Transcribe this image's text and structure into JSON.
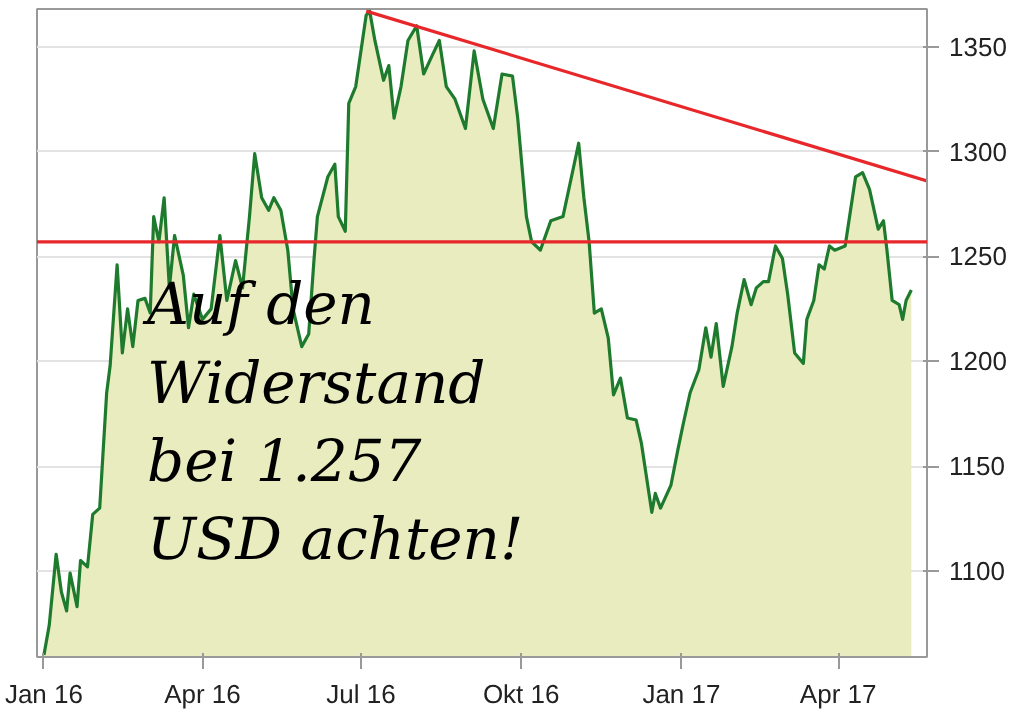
{
  "chart_data": {
    "type": "area",
    "x": [
      "2016-01-01",
      "2016-01-04",
      "2016-01-08",
      "2016-01-11",
      "2016-01-14",
      "2016-01-16",
      "2016-01-20",
      "2016-01-22",
      "2016-01-26",
      "2016-01-29",
      "2016-02-02",
      "2016-02-06",
      "2016-02-08",
      "2016-02-12",
      "2016-02-15",
      "2016-02-18",
      "2016-02-21",
      "2016-02-24",
      "2016-02-28",
      "2016-03-02",
      "2016-03-04",
      "2016-03-07",
      "2016-03-10",
      "2016-03-13",
      "2016-03-16",
      "2016-03-21",
      "2016-03-24",
      "2016-03-27",
      "2016-04-01",
      "2016-04-06",
      "2016-04-11",
      "2016-04-15",
      "2016-04-20",
      "2016-04-24",
      "2016-04-28",
      "2016-05-01",
      "2016-05-05",
      "2016-05-09",
      "2016-05-12",
      "2016-05-16",
      "2016-05-20",
      "2016-05-23",
      "2016-05-28",
      "2016-06-01",
      "2016-06-04",
      "2016-06-06",
      "2016-06-12",
      "2016-06-16",
      "2016-06-18",
      "2016-06-22",
      "2016-06-24",
      "2016-06-28",
      "2016-07-04",
      "2016-07-06",
      "2016-07-09",
      "2016-07-14",
      "2016-07-17",
      "2016-07-20",
      "2016-07-24",
      "2016-07-28",
      "2016-08-02",
      "2016-08-06",
      "2016-08-11",
      "2016-08-15",
      "2016-08-19",
      "2016-08-24",
      "2016-08-30",
      "2016-09-04",
      "2016-09-09",
      "2016-09-15",
      "2016-09-20",
      "2016-09-26",
      "2016-09-29",
      "2016-10-04",
      "2016-10-07",
      "2016-10-12",
      "2016-10-18",
      "2016-10-25",
      "2016-11-03",
      "2016-11-06",
      "2016-11-09",
      "2016-11-12",
      "2016-11-16",
      "2016-11-20",
      "2016-11-23",
      "2016-11-27",
      "2016-12-01",
      "2016-12-06",
      "2016-12-09",
      "2016-12-15",
      "2016-12-17",
      "2016-12-20",
      "2016-12-26",
      "2016-12-30",
      "2017-01-02",
      "2017-01-06",
      "2017-01-11",
      "2017-01-15",
      "2017-01-18",
      "2017-01-21",
      "2017-01-25",
      "2017-01-30",
      "2017-02-02",
      "2017-02-06",
      "2017-02-10",
      "2017-02-13",
      "2017-02-17",
      "2017-02-20",
      "2017-02-24",
      "2017-02-28",
      "2017-03-03",
      "2017-03-07",
      "2017-03-12",
      "2017-03-14",
      "2017-03-18",
      "2017-03-21",
      "2017-03-24",
      "2017-03-27",
      "2017-03-30",
      "2017-04-05",
      "2017-04-11",
      "2017-04-15",
      "2017-04-19",
      "2017-04-24",
      "2017-04-27",
      "2017-04-29",
      "2017-05-02",
      "2017-05-06",
      "2017-05-08",
      "2017-05-10",
      "2017-05-13"
    ],
    "series": [
      {
        "color": "#1e7b2e",
        "values": [
          1060,
          1074,
          1108,
          1090,
          1081,
          1099,
          1083,
          1105,
          1102,
          1127,
          1130,
          1185,
          1198,
          1246,
          1204,
          1225,
          1207,
          1229,
          1230,
          1223,
          1269,
          1257,
          1278,
          1235,
          1260,
          1241,
          1216,
          1232,
          1220,
          1225,
          1260,
          1229,
          1248,
          1235,
          1269,
          1299,
          1278,
          1272,
          1278,
          1272,
          1253,
          1225,
          1207,
          1213,
          1248,
          1269,
          1288,
          1294,
          1269,
          1262,
          1323,
          1331,
          1365,
          1367,
          1353,
          1334,
          1341,
          1316,
          1331,
          1353,
          1360,
          1337,
          1346,
          1353,
          1331,
          1325,
          1311,
          1348,
          1325,
          1311,
          1337,
          1336,
          1316,
          1269,
          1257,
          1253,
          1267,
          1269,
          1304,
          1278,
          1257,
          1223,
          1225,
          1211,
          1184,
          1192,
          1173,
          1172,
          1161,
          1128,
          1137,
          1130,
          1141,
          1158,
          1170,
          1185,
          1196,
          1216,
          1202,
          1218,
          1188,
          1207,
          1223,
          1239,
          1227,
          1235,
          1238,
          1238,
          1255,
          1249,
          1232,
          1204,
          1199,
          1220,
          1229,
          1246,
          1244,
          1255,
          1253,
          1255,
          1288,
          1290,
          1282,
          1263,
          1267,
          1253,
          1229,
          1227,
          1220,
          1229,
          1234
        ]
      },
      {
        "type": "line",
        "color": "#e8272a",
        "x": [
          "2016-07-04",
          "2017-05-22"
        ],
        "values": [
          1367,
          1286
        ]
      }
    ],
    "xlim": [
      "2015-12-28",
      "2017-05-22"
    ],
    "xticks": [
      {
        "value": "2016-01-01",
        "label": "Jan 16"
      },
      {
        "value": "2016-04-01",
        "label": "Apr 16"
      },
      {
        "value": "2016-07-01",
        "label": "Jul 16"
      },
      {
        "value": "2016-10-01",
        "label": "Okt 16"
      },
      {
        "value": "2017-01-01",
        "label": "Jan 17"
      },
      {
        "value": "2017-04-01",
        "label": "Apr 17"
      }
    ],
    "ylim": [
      1059,
      1368
    ],
    "yticks": [
      1100,
      1150,
      1200,
      1250,
      1300,
      1350
    ],
    "grid": "y",
    "ref_lines": [
      {
        "axis": "y",
        "value": 1257,
        "color": "#e8272a"
      }
    ],
    "annotations": [
      "Auf den\nWiderstand\nbei 1.257\nUSD achten!"
    ]
  }
}
